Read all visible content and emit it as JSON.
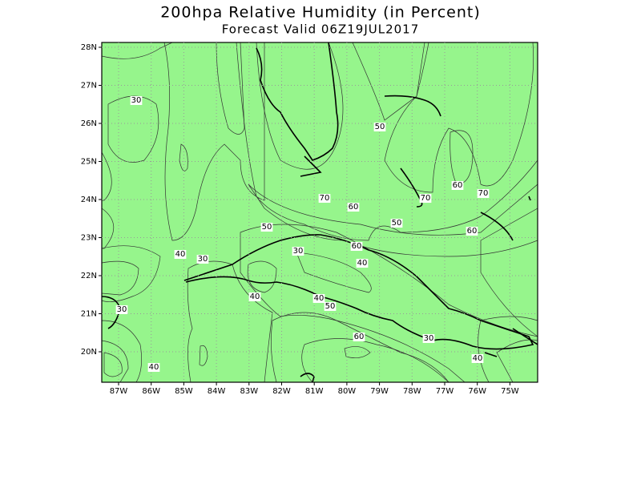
{
  "header": {
    "title": "200hpa Relative Humidity (in Percent)",
    "subtitle": "Forecast Valid  06Z19JUL2017"
  },
  "map": {
    "lat_labels": [
      "28N",
      "27N",
      "26N",
      "25N",
      "24N",
      "23N",
      "22N",
      "21N",
      "20N"
    ],
    "lon_labels": [
      "87W",
      "86W",
      "85W",
      "84W",
      "83W",
      "82W",
      "81W",
      "80W",
      "79W",
      "78W",
      "77W",
      "76W",
      "75W"
    ],
    "contour_labels": [
      "30",
      "50",
      "70",
      "60",
      "70",
      "60",
      "70",
      "50",
      "50",
      "60",
      "60",
      "40",
      "30",
      "30",
      "40",
      "40",
      "40",
      "50",
      "30",
      "60",
      "30",
      "40",
      "40"
    ]
  }
}
